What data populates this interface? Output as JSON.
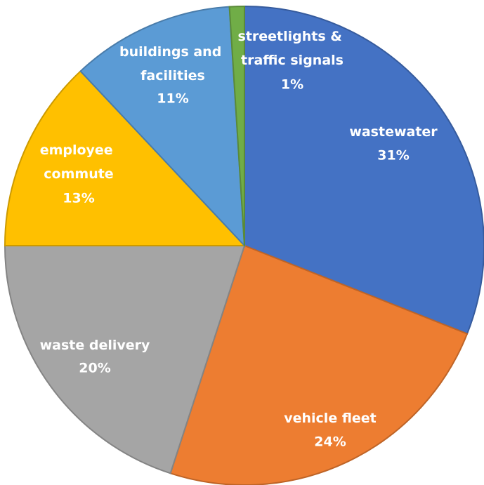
{
  "chart_data": {
    "type": "pie",
    "categories": [
      "wastewater",
      "vehicle fleet",
      "waste delivery",
      "employee commute",
      "buildings and facilities",
      "streetlights & traffic signals"
    ],
    "values": [
      31,
      24,
      20,
      13,
      11,
      1
    ],
    "value_labels": [
      "31%",
      "24%",
      "20%",
      "13%",
      "11%",
      "1%"
    ],
    "colors": [
      "#4472c4",
      "#ed7d31",
      "#a5a5a5",
      "#ffc000",
      "#5b9bd5",
      "#70ad47"
    ]
  }
}
